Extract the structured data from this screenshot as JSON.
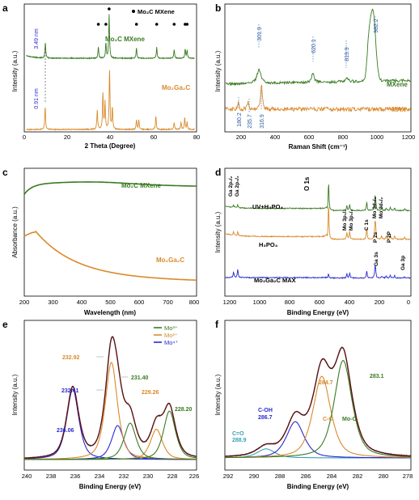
{
  "figure": {
    "panels": [
      "a",
      "b",
      "c",
      "d",
      "e",
      "f"
    ]
  },
  "chart_data": [
    {
      "id": "a",
      "type": "line",
      "xlabel": "2 Theta (Degree)",
      "ylabel": "Intensity (a.u.)",
      "xlim": [
        0,
        80
      ],
      "xticks": [
        "0",
        "20",
        "40",
        "60",
        "80"
      ],
      "series": [
        {
          "name": "Mo₂C MXene",
          "color": "#3a7a22",
          "peaks": [
            [
              9.8,
              0.3
            ],
            [
              34.4,
              0.22
            ],
            [
              37.9,
              0.3
            ],
            [
              39.4,
              0.88
            ],
            [
              52.1,
              0.2
            ],
            [
              61.5,
              0.22
            ],
            [
              69.6,
              0.18
            ],
            [
              74.7,
              0.18
            ],
            [
              75.6,
              0.16
            ]
          ]
        },
        {
          "name": "Mo₂Ga₂C",
          "color": "#d98a2b",
          "peaks": [
            [
              9.7,
              0.38
            ],
            [
              33.9,
              0.32
            ],
            [
              36.5,
              0.6
            ],
            [
              37.5,
              0.45
            ],
            [
              39.6,
              1.0
            ],
            [
              40.9,
              0.35
            ],
            [
              52.1,
              0.15
            ],
            [
              53.2,
              0.15
            ],
            [
              61.1,
              0.22
            ],
            [
              69.6,
              0.12
            ],
            [
              72.8,
              0.12
            ],
            [
              74.5,
              0.2
            ],
            [
              75.6,
              0.12
            ]
          ]
        }
      ],
      "marker_label": "Mo₂C MXene",
      "marker_2theta": [
        34.4,
        37.9,
        39.4,
        52.1,
        61.5,
        69.6,
        74.7,
        75.6
      ],
      "annotations": [
        "3.49 nm",
        "0.91 nm"
      ]
    },
    {
      "id": "b",
      "type": "line",
      "xlabel": "Raman Shift (cm⁻¹)",
      "ylabel": "Intensity (a.u.)",
      "xlim": [
        100,
        1200
      ],
      "xticks": [
        "200",
        "400",
        "600",
        "800",
        "1000",
        "1200"
      ],
      "series": [
        {
          "name": "MXene",
          "color": "#3a7a22"
        },
        {
          "name": "MAX",
          "color": "#d98a2b"
        }
      ],
      "peak_labels": [
        {
          "text": "301.9",
          "x": 301.9
        },
        {
          "text": "620.1",
          "x": 620.1
        },
        {
          "text": "819.9",
          "x": 819.9
        },
        {
          "text": "982.2",
          "x": 982.2
        },
        {
          "text": "180.2",
          "x": 180.2
        },
        {
          "text": "235.7",
          "x": 235.7
        },
        {
          "text": "316.9",
          "x": 316.9
        }
      ]
    },
    {
      "id": "c",
      "type": "line",
      "xlabel": "Wavelength (nm)",
      "ylabel": "Absorbance (a.u.)",
      "xlim": [
        200,
        800
      ],
      "xticks": [
        "200",
        "300",
        "400",
        "500",
        "600",
        "700",
        "800"
      ],
      "series": [
        {
          "name": "Mo₂C MXene",
          "color": "#3a7a22"
        },
        {
          "name": "Mo₂Ga₂C",
          "color": "#d98a2b"
        }
      ]
    },
    {
      "id": "d",
      "type": "line",
      "xlabel": "Binding Energy (eV)",
      "ylabel": "Intensity (a.u.)",
      "xlim": [
        1200,
        0
      ],
      "xticks": [
        "1200",
        "1000",
        "800",
        "600",
        "400",
        "200",
        "0"
      ],
      "series": [
        {
          "name": "UV+H₃PO₄",
          "color": "#3a7a22"
        },
        {
          "name": "H₃PO₄",
          "color": "#d98a2b"
        },
        {
          "name": "Mo₂Ga₂C MAX",
          "color": "#2a2ad0"
        }
      ],
      "peak_labels": [
        "Ga 2p₁/₂",
        "Ga 2p₃/₂",
        "O 1s",
        "Mo 3p₁/₂",
        "Mo 3p₃/₂",
        "C 1s",
        "Mo 3d₃/₂",
        "Mo 3d₅/₂",
        "P 2s",
        "P 2P",
        "Ga 3s",
        "Ga 3p"
      ]
    },
    {
      "id": "e",
      "type": "line",
      "xlabel": "Binding Energy (eV)",
      "ylabel": "Intensity (a.u.)",
      "xlim": [
        240,
        226
      ],
      "xticks": [
        "240",
        "238",
        "236",
        "234",
        "232",
        "230",
        "228",
        "226"
      ],
      "legend": [
        {
          "name": "Mo³⁺",
          "color": "#3a7a22"
        },
        {
          "name": "Mo²⁺",
          "color": "#d98a2b"
        },
        {
          "name": "Mo⁴⁺",
          "color": "#2a2ad0"
        }
      ],
      "components": [
        {
          "center": 236.06,
          "label": "236.06",
          "color": "#2a2ad0",
          "height": 0.58
        },
        {
          "center": 232.41,
          "label": "232.41",
          "color": "#2a2ad0",
          "height": 0.28
        },
        {
          "center": 232.92,
          "label": "232.92",
          "color": "#d98a2b",
          "height": 0.8
        },
        {
          "center": 229.26,
          "label": "229.26",
          "color": "#d98a2b",
          "height": 0.25
        },
        {
          "center": 231.4,
          "label": "231.40",
          "color": "#3a7a22",
          "height": 0.3
        },
        {
          "center": 228.2,
          "label": "228.20",
          "color": "#3a7a22",
          "height": 0.4
        }
      ]
    },
    {
      "id": "f",
      "type": "line",
      "xlabel": "Binding Energy (eV)",
      "ylabel": "Intensity (a.u.)",
      "xlim": [
        292,
        278
      ],
      "xticks": [
        "292",
        "290",
        "288",
        "286",
        "284",
        "282",
        "280",
        "278"
      ],
      "components": [
        {
          "center": 288.9,
          "name": "C=O",
          "label": "288.9",
          "color": "#39a0b8",
          "height": 0.08
        },
        {
          "center": 286.7,
          "name": "C-OH",
          "label": "286.7",
          "color": "#2a2ad0",
          "height": 0.32
        },
        {
          "center": 284.7,
          "name": "C-C",
          "label": "284.7",
          "color": "#d98a2b",
          "height": 0.72
        },
        {
          "center": 283.1,
          "name": "Mo-C",
          "label": "283.1",
          "color": "#3a7a22",
          "height": 0.86
        }
      ]
    }
  ]
}
